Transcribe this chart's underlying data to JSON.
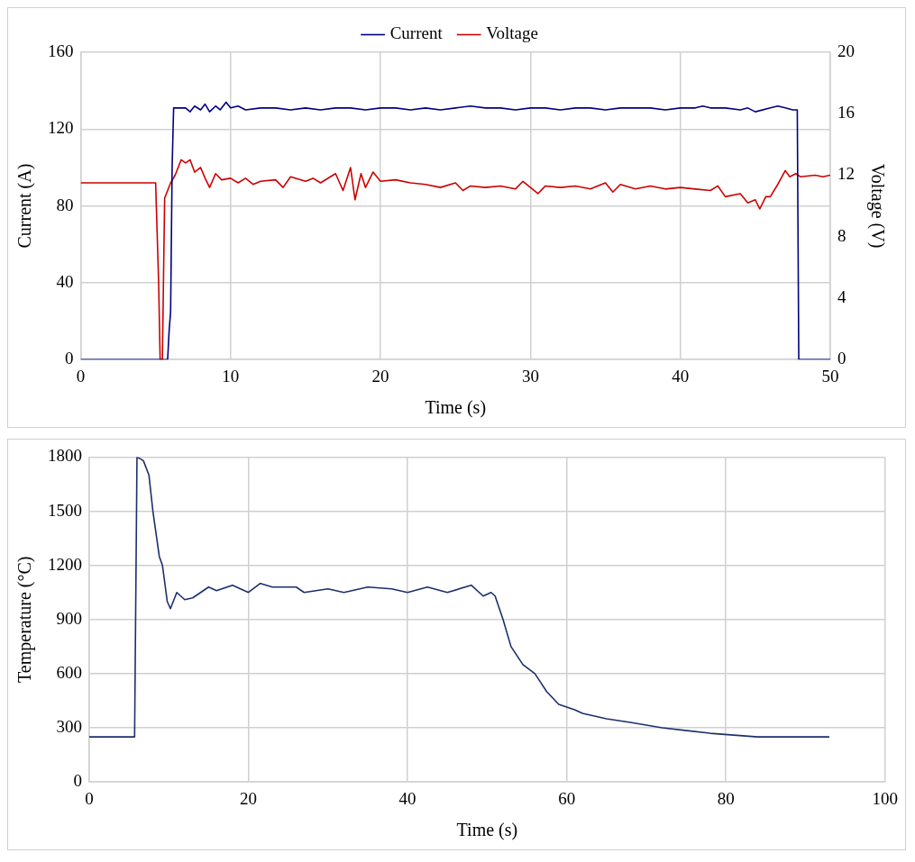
{
  "chart_data": [
    {
      "type": "line",
      "xlabel": "Time (s)",
      "ylabel": "Current (A)",
      "y2label": "Voltage (V)",
      "xlim": [
        0,
        50
      ],
      "xticks": [
        0,
        10,
        20,
        30,
        40,
        50
      ],
      "ylim": [
        0,
        160
      ],
      "yticks": [
        0,
        40,
        80,
        120,
        160
      ],
      "y2lim": [
        0,
        20
      ],
      "y2ticks": [
        0,
        4,
        8,
        12,
        16,
        20
      ],
      "grid": true,
      "legend": "top",
      "marker": "none",
      "line_style": "solid",
      "series": [
        {
          "name": "Current",
          "color": "#000080",
          "x": [
            0,
            5.8,
            5.9,
            6.0,
            6.1,
            6.2,
            7,
            7.3,
            7.6,
            8,
            8.3,
            8.6,
            9,
            9.3,
            9.7,
            10,
            10.5,
            11,
            12,
            13,
            14,
            15,
            16,
            17,
            18,
            19,
            20,
            21,
            22,
            23,
            24,
            25,
            26,
            27,
            28,
            29,
            30,
            31,
            32,
            33,
            34,
            35,
            36,
            37,
            38,
            39,
            40,
            41,
            41.5,
            42,
            43,
            44,
            44.5,
            45,
            46,
            46.5,
            47,
            47.5,
            47.8,
            47.9,
            50
          ],
          "values": [
            0,
            0,
            15,
            25,
            100,
            131,
            131,
            129,
            132,
            130,
            133,
            129,
            132,
            130,
            134,
            131,
            132,
            130,
            131,
            131,
            130,
            131,
            130,
            131,
            131,
            130,
            131,
            131,
            130,
            131,
            130,
            131,
            132,
            131,
            131,
            130,
            131,
            131,
            130,
            131,
            131,
            130,
            131,
            131,
            131,
            130,
            131,
            131,
            132,
            131,
            131,
            130,
            131,
            129,
            131,
            132,
            131,
            130,
            130,
            0,
            0
          ]
        },
        {
          "name": "Voltage",
          "color": "#cc0000",
          "axis": "y2",
          "x": [
            0,
            5,
            5.2,
            5.3,
            5.45,
            5.6,
            5.8,
            6.0,
            6.3,
            6.7,
            7,
            7.3,
            7.6,
            8,
            8.3,
            8.6,
            9,
            9.4,
            10,
            10.5,
            11,
            11.5,
            12,
            13,
            13.5,
            14,
            15,
            15.5,
            16,
            17,
            17.5,
            18,
            18.3,
            18.7,
            19,
            19.5,
            20,
            21,
            22,
            23,
            24,
            25,
            25.5,
            26,
            27,
            28,
            29,
            29.5,
            30,
            30.5,
            31,
            32,
            33,
            34,
            35,
            35.5,
            36,
            37,
            38,
            39,
            40,
            41,
            42,
            42.5,
            43,
            44,
            44.5,
            45,
            45.3,
            45.7,
            46,
            46.5,
            47,
            47.3,
            47.7,
            48,
            49,
            49.5,
            50
          ],
          "values": [
            11.5,
            11.5,
            5,
            0,
            0,
            10.5,
            11,
            11.5,
            12,
            13,
            12.8,
            13,
            12.2,
            12.5,
            11.8,
            11.2,
            12.1,
            11.7,
            11.8,
            11.5,
            11.8,
            11.4,
            11.6,
            11.7,
            11.2,
            11.9,
            11.6,
            11.8,
            11.5,
            12.1,
            11,
            12.5,
            10.4,
            12.1,
            11.2,
            12.2,
            11.6,
            11.7,
            11.5,
            11.4,
            11.2,
            11.5,
            11,
            11.3,
            11.2,
            11.3,
            11.1,
            11.6,
            11.2,
            10.8,
            11.3,
            11.2,
            11.3,
            11.1,
            11.5,
            10.9,
            11.4,
            11.1,
            11.3,
            11.1,
            11.2,
            11.1,
            11,
            11.3,
            10.6,
            10.8,
            10.2,
            10.4,
            9.8,
            10.6,
            10.6,
            11.4,
            12.3,
            11.9,
            12.1,
            11.9,
            12,
            11.9,
            12
          ]
        }
      ]
    },
    {
      "type": "line",
      "xlabel": "Time (s)",
      "ylabel": "Temperature (°C)",
      "xlim": [
        0,
        100
      ],
      "xticks": [
        0,
        20,
        40,
        60,
        80,
        100
      ],
      "ylim": [
        0,
        1800
      ],
      "yticks": [
        0,
        300,
        600,
        900,
        1200,
        1500,
        1800
      ],
      "grid": true,
      "marker": "none",
      "line_style": "solid",
      "series": [
        {
          "color": "#1b2f6e",
          "x": [
            0,
            5.7,
            6,
            6.8,
            7.5,
            8,
            8.8,
            9.2,
            9.8,
            10.2,
            11,
            12,
            13,
            15,
            16,
            18,
            20,
            21.5,
            23,
            26,
            27,
            30,
            32,
            35,
            38,
            40,
            42.5,
            45,
            48,
            49.5,
            50.5,
            51,
            52,
            53,
            54.5,
            56,
            57.5,
            59,
            61,
            62,
            65,
            68,
            72,
            78,
            84,
            93
          ],
          "values": [
            250,
            250,
            1800,
            1780,
            1700,
            1500,
            1250,
            1200,
            1000,
            960,
            1050,
            1010,
            1020,
            1080,
            1060,
            1090,
            1050,
            1100,
            1080,
            1080,
            1050,
            1070,
            1050,
            1080,
            1070,
            1050,
            1080,
            1050,
            1090,
            1030,
            1050,
            1030,
            900,
            750,
            650,
            600,
            500,
            430,
            400,
            380,
            350,
            330,
            300,
            270,
            250,
            250
          ]
        }
      ]
    }
  ]
}
